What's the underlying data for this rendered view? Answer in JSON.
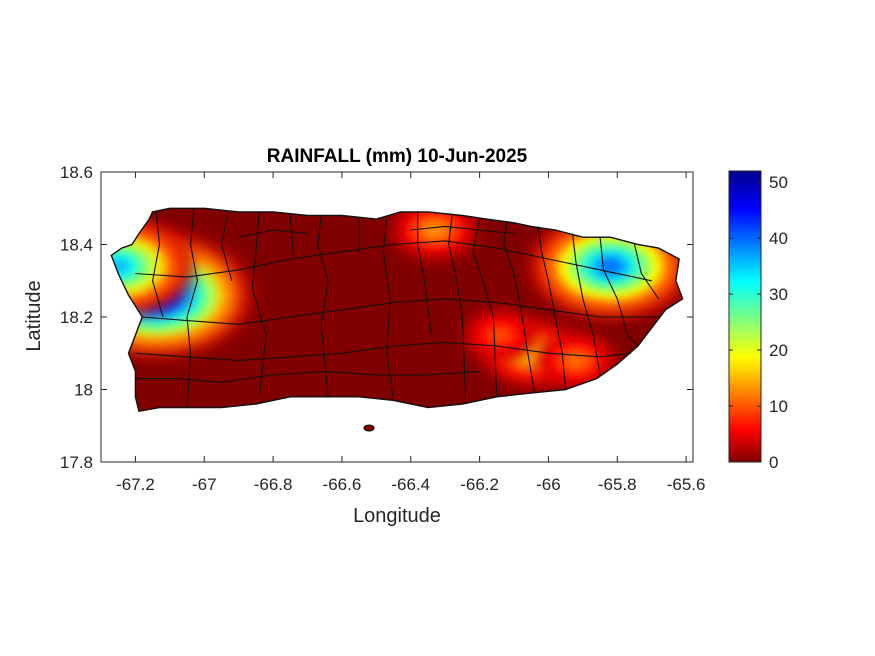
{
  "chart_data": {
    "type": "heatmap",
    "title": "RAINFALL (mm) 10-Jun-2025",
    "xlabel": "Longitude",
    "ylabel": "Latitude",
    "xlim": [
      -67.3,
      -65.58
    ],
    "ylim": [
      17.8,
      18.6
    ],
    "xticks": [
      -67.2,
      -67,
      -66.8,
      -66.6,
      -66.4,
      -66.2,
      -66,
      -65.8,
      -65.6
    ],
    "xtick_labels": [
      "-67.2",
      "-67",
      "-66.8",
      "-66.6",
      "-66.4",
      "-66.2",
      "-66",
      "-65.8",
      "-65.6"
    ],
    "yticks": [
      17.8,
      18,
      18.2,
      18.4,
      18.6
    ],
    "ytick_labels": [
      "17.8",
      "18",
      "18.2",
      "18.4",
      "18.6"
    ],
    "colorbar": {
      "colormap": "jet",
      "lim": [
        0,
        52
      ],
      "ticks": [
        0,
        10,
        20,
        30,
        40,
        50
      ],
      "tick_labels": [
        "0",
        "10",
        "20",
        "30",
        "40",
        "50"
      ]
    },
    "grid": false,
    "background_value_mm": 0,
    "rain_hotspots": [
      {
        "lon": -67.14,
        "lat": 18.26,
        "peak_mm": 50
      },
      {
        "lon": -67.25,
        "lat": 18.34,
        "peak_mm": 36
      },
      {
        "lon": -65.82,
        "lat": 18.34,
        "peak_mm": 40
      },
      {
        "lon": -66.05,
        "lat": 18.1,
        "peak_mm": 18
      },
      {
        "lon": -66.33,
        "lat": 18.44,
        "peak_mm": 14
      },
      {
        "lon": -66.14,
        "lat": 18.15,
        "peak_mm": 10
      },
      {
        "lon": -65.92,
        "lat": 18.08,
        "peak_mm": 12
      }
    ]
  }
}
